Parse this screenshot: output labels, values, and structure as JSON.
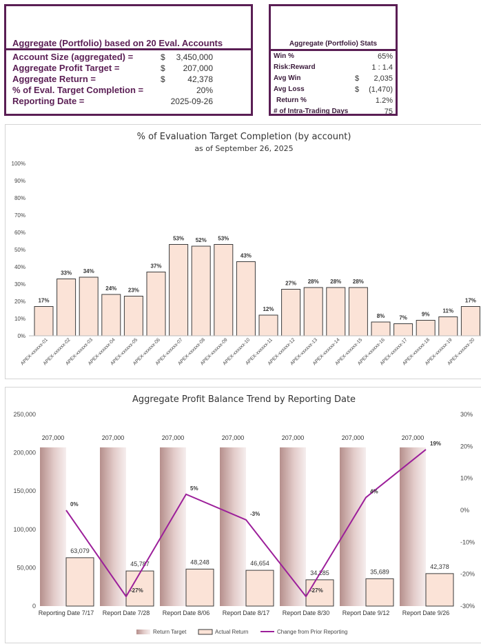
{
  "summary": {
    "title": "Aggregate (Portfolio) based on 20 Eval. Accounts",
    "rows": [
      {
        "label": "Account Size (aggregated) =",
        "currency": "$",
        "value": "3,450,000"
      },
      {
        "label": "Aggregate Profit Target =",
        "currency": "$",
        "value": "207,000"
      },
      {
        "label": "Aggregate Return =",
        "currency": "$",
        "value": "42,378"
      },
      {
        "label": "% of Eval. Target Completion =",
        "currency": "",
        "value": "20%"
      },
      {
        "label": "Reporting Date =",
        "currency": "",
        "value": "2025-09-26"
      }
    ]
  },
  "stats": {
    "title": "Aggregate (Portfolio) Stats",
    "rows": [
      {
        "label": "Win %",
        "currency": "",
        "value": "65%"
      },
      {
        "label": "Risk:Reward",
        "currency": "",
        "value": "1 : 1.4"
      },
      {
        "label": "Avg Win",
        "currency": "$",
        "value": "2,035"
      },
      {
        "label": "Avg Loss",
        "currency": "$",
        "value": "(1,470)"
      },
      {
        "label": "Return %",
        "currency": "",
        "value": "1.2%"
      },
      {
        "label": "# of Intra-Trading Days",
        "currency": "",
        "value": "75"
      }
    ]
  },
  "colors": {
    "accent": "#5a1e54",
    "bar_fill": "#fbe3d7",
    "bar_stroke": "#3a3a3a",
    "line": "#9c1f9a",
    "target_bar": "#c9a3a0"
  },
  "chart_data": [
    {
      "type": "bar",
      "title": "% of Evaluation Target Completion (by account)",
      "subtitle": "as of September 26, 2025",
      "categories": [
        "APEX-xxxxxx-01",
        "APEX-xxxxxx-02",
        "APEX-xxxxxx-03",
        "APEX-xxxxxx-04",
        "APEX-xxxxxx-05",
        "APEX-xxxxxx-06",
        "APEX-xxxxxx-07",
        "APEX-xxxxxx-08",
        "APEX-xxxxxx-09",
        "APEX-xxxxxx-10",
        "APEX-xxxxxx-11",
        "APEX-xxxxxx-12",
        "APEX-xxxxxx-13",
        "APEX-xxxxxx-14",
        "APEX-xxxxxx-15",
        "APEX-xxxxxx-16",
        "APEX-xxxxxx-17",
        "APEX-xxxxxx-18",
        "APEX-xxxxxx-19",
        "APEX-xxxxxx-20"
      ],
      "values": [
        17,
        33,
        34,
        24,
        23,
        37,
        53,
        52,
        53,
        43,
        12,
        27,
        28,
        28,
        28,
        8,
        7,
        9,
        11,
        17
      ],
      "data_labels": [
        "17%",
        "33%",
        "34%",
        "24%",
        "23%",
        "37%",
        "53%",
        "52%",
        "53%",
        "43%",
        "12%",
        "27%",
        "28%",
        "28%",
        "28%",
        "8%",
        "7%",
        "9%",
        "11%",
        "17%"
      ],
      "yticks": [
        "0%",
        "10%",
        "20%",
        "30%",
        "40%",
        "50%",
        "60%",
        "70%",
        "80%",
        "90%",
        "100%"
      ],
      "ylim": [
        0,
        100
      ],
      "grid": false
    },
    {
      "type": "bar",
      "title": "Aggregate Profit Balance Trend by Reporting Date",
      "categories": [
        "Reporting Date 7/17",
        "Report Date 7/28",
        "Report Date 8/06",
        "Report Date 8/17",
        "Report Date 8/30",
        "Report Date 9/12",
        "Report Date 9/26"
      ],
      "series": [
        {
          "name": "Return Target",
          "type": "bar",
          "values": [
            207000,
            207000,
            207000,
            207000,
            207000,
            207000,
            207000
          ],
          "labels": [
            "207,000",
            "207,000",
            "207,000",
            "207,000",
            "207,000",
            "207,000",
            "207,000"
          ]
        },
        {
          "name": "Actual Return",
          "type": "bar",
          "values": [
            63079,
            45787,
            48248,
            46654,
            34285,
            35689,
            42378
          ],
          "labels": [
            "63,079",
            "45,787",
            "48,248",
            "46,654",
            "34,285",
            "35,689",
            "42,378"
          ]
        },
        {
          "name": "Change from Prior Reporting",
          "type": "line",
          "axis": "secondary",
          "values": [
            0,
            -27,
            5,
            -3,
            -27,
            4,
            19
          ],
          "labels": [
            "0%",
            "-27%",
            "5%",
            "-3%",
            "-27%",
            "4%",
            "19%"
          ]
        }
      ],
      "yticks": [
        "0",
        "50,000",
        "100,000",
        "150,000",
        "200,000",
        "250,000"
      ],
      "ylim": [
        0,
        250000
      ],
      "y2ticks": [
        "-30%",
        "-20%",
        "-10%",
        "0%",
        "10%",
        "20%",
        "30%"
      ],
      "y2lim": [
        -30,
        30
      ],
      "legend": "bottom"
    }
  ]
}
